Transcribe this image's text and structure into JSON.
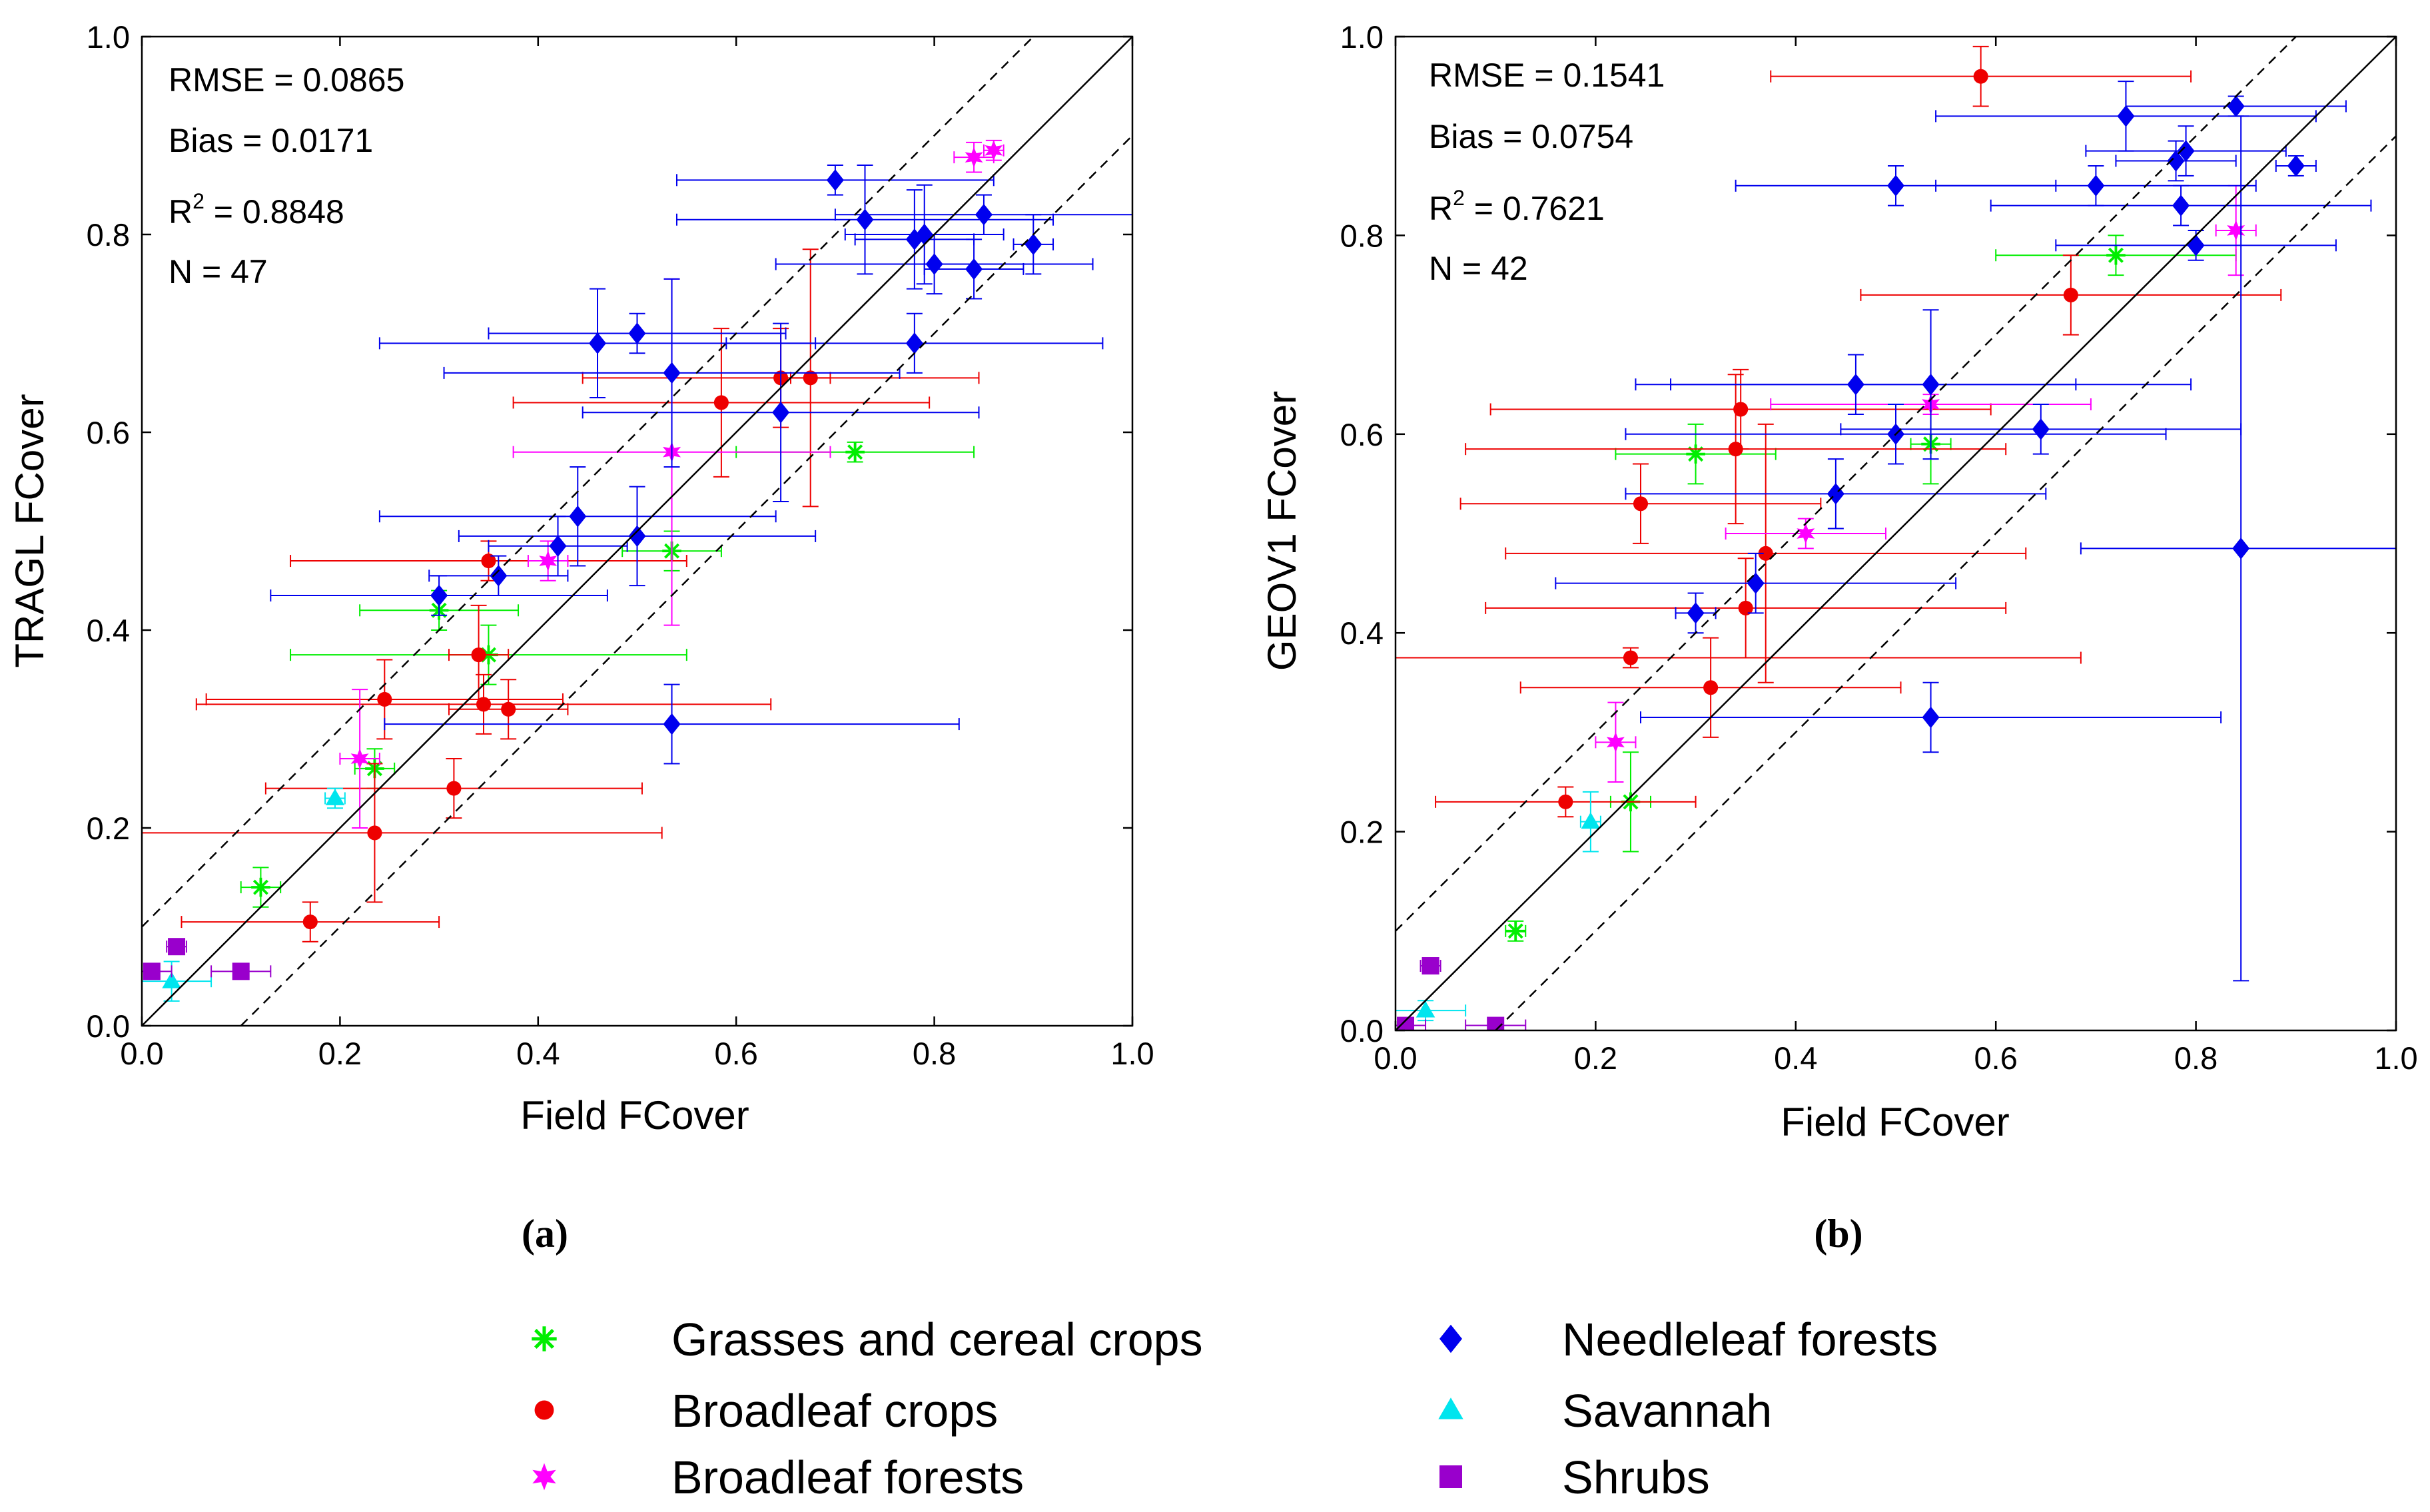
{
  "colors": {
    "grasses": "#00ee00",
    "broadleaf_crops": "#ee0000",
    "broadleaf_forests": "#ff00ff",
    "needleleaf": "#0000ee",
    "savannah": "#00e5ee",
    "shrubs": "#9900cc",
    "axis": "#000000"
  },
  "legend": {
    "items": [
      {
        "key": "grasses",
        "label": "Grasses and cereal crops",
        "marker": "star"
      },
      {
        "key": "broadleaf_crops",
        "label": "Broadleaf crops",
        "marker": "circle"
      },
      {
        "key": "broadleaf_forests",
        "label": "Broadleaf forests",
        "marker": "star6"
      },
      {
        "key": "needleleaf",
        "label": "Needleleaf forests",
        "marker": "diamond"
      },
      {
        "key": "savannah",
        "label": "Savannah",
        "marker": "triangle"
      },
      {
        "key": "shrubs",
        "label": "Shrubs",
        "marker": "square"
      }
    ]
  },
  "chart_data": [
    {
      "type": "scatter",
      "panel_label": "(a)",
      "xlabel": "Field  FCover",
      "ylabel": "TRAGL  FCover",
      "xlim": [
        0,
        1
      ],
      "ylim": [
        0,
        1
      ],
      "xticks": [
        "0.0",
        "0.2",
        "0.4",
        "0.6",
        "0.8",
        "1.0"
      ],
      "yticks": [
        "0.0",
        "0.2",
        "0.4",
        "0.6",
        "0.8",
        "1.0"
      ],
      "lines": {
        "identity": true,
        "band": 0.1
      },
      "stats": {
        "rmse": "RMSE = 0.0865",
        "bias": "Bias = 0.0171",
        "r2_prefix": "R",
        "r2_sup": "2",
        "r2_value": " = 0.8848",
        "n": "N = 47"
      },
      "series": [
        {
          "name": "Grasses and cereal crops",
          "key": "grasses",
          "marker": "star",
          "points": [
            [
              0.12,
              0.14,
              0.02,
              0.02
            ],
            [
              0.235,
              0.26,
              0.02,
              0.02
            ],
            [
              0.3,
              0.42,
              0.08,
              0.02
            ],
            [
              0.35,
              0.375,
              0.2,
              0.03
            ],
            [
              0.535,
              0.48,
              0.05,
              0.02
            ],
            [
              0.72,
              0.58,
              0.12,
              0.01
            ]
          ]
        },
        {
          "name": "Broadleaf crops",
          "key": "broadleaf_crops",
          "marker": "circle",
          "points": [
            [
              0.17,
              0.105,
              0.13,
              0.02
            ],
            [
              0.235,
              0.195,
              0.29,
              0.07
            ],
            [
              0.245,
              0.33,
              0.18,
              0.04
            ],
            [
              0.315,
              0.24,
              0.19,
              0.03
            ],
            [
              0.34,
              0.375,
              0.03,
              0.05
            ],
            [
              0.345,
              0.325,
              0.29,
              0.03
            ],
            [
              0.35,
              0.47,
              0.2,
              0.02
            ],
            [
              0.37,
              0.32,
              0.06,
              0.03
            ],
            [
              0.585,
              0.63,
              0.21,
              0.075
            ],
            [
              0.645,
              0.655,
              0.2,
              0.05
            ],
            [
              0.675,
              0.655,
              0.02,
              0.13
            ]
          ]
        },
        {
          "name": "Broadleaf forests",
          "key": "broadleaf_forests",
          "marker": "star6",
          "points": [
            [
              0.22,
              0.27,
              0.02,
              0.07
            ],
            [
              0.41,
              0.47,
              0.02,
              0.02
            ],
            [
              0.535,
              0.58,
              0.16,
              0.175
            ],
            [
              0.84,
              0.878,
              0.02,
              0.015
            ],
            [
              0.86,
              0.885,
              0.01,
              0.01
            ]
          ]
        },
        {
          "name": "Needleleaf forests",
          "key": "needleleaf",
          "marker": "diamond",
          "points": [
            [
              0.3,
              0.435,
              0.17,
              0.02
            ],
            [
              0.36,
              0.455,
              0.07,
              0.02
            ],
            [
              0.42,
              0.485,
              0.07,
              0.03
            ],
            [
              0.44,
              0.515,
              0.2,
              0.05
            ],
            [
              0.5,
              0.495,
              0.18,
              0.05
            ],
            [
              0.46,
              0.69,
              0.22,
              0.055
            ],
            [
              0.5,
              0.7,
              0.15,
              0.02
            ],
            [
              0.535,
              0.66,
              0.23,
              0.095
            ],
            [
              0.535,
              0.305,
              0.29,
              0.04
            ],
            [
              0.645,
              0.62,
              0.2,
              0.09
            ],
            [
              0.7,
              0.855,
              0.16,
              0.015
            ],
            [
              0.73,
              0.815,
              0.19,
              0.055
            ],
            [
              0.78,
              0.69,
              0.19,
              0.03
            ],
            [
              0.78,
              0.795,
              0.06,
              0.05
            ],
            [
              0.79,
              0.8,
              0.08,
              0.05
            ],
            [
              0.8,
              0.77,
              0.16,
              0.03
            ],
            [
              0.84,
              0.765,
              0.05,
              0.03
            ],
            [
              0.85,
              0.82,
              0.15,
              0.02
            ],
            [
              0.9,
              0.79,
              0.02,
              0.03
            ]
          ]
        },
        {
          "name": "Savannah",
          "key": "savannah",
          "marker": "triangle",
          "points": [
            [
              0.03,
              0.045,
              0.04,
              0.02
            ],
            [
              0.195,
              0.23,
              0.01,
              0.01
            ]
          ]
        },
        {
          "name": "Shrubs",
          "key": "shrubs",
          "marker": "square",
          "points": [
            [
              0.01,
              0.055,
              0.02,
              0.005
            ],
            [
              0.035,
              0.08,
              0.01,
              0.005
            ],
            [
              0.1,
              0.055,
              0.03,
              0.005
            ]
          ]
        }
      ]
    },
    {
      "type": "scatter",
      "panel_label": "(b)",
      "xlabel": "Field  FCover",
      "ylabel": "GEOV1  FCover",
      "xlim": [
        0,
        1
      ],
      "ylim": [
        0,
        1
      ],
      "xticks": [
        "0.0",
        "0.2",
        "0.4",
        "0.6",
        "0.8",
        "1.0"
      ],
      "yticks": [
        "0.0",
        "0.2",
        "0.4",
        "0.6",
        "0.8",
        "1.0"
      ],
      "lines": {
        "identity": true,
        "band": 0.1
      },
      "stats": {
        "rmse": "RMSE = 0.1541",
        "bias": "Bias = 0.0754",
        "r2_prefix": "R",
        "r2_sup": "2",
        "r2_value": " = 0.7621",
        "n": "N = 42"
      },
      "series": [
        {
          "name": "Grasses and cereal crops",
          "key": "grasses",
          "marker": "star",
          "points": [
            [
              0.12,
              0.1,
              0.01,
              0.01
            ],
            [
              0.235,
              0.23,
              0.02,
              0.05
            ],
            [
              0.3,
              0.58,
              0.08,
              0.03
            ],
            [
              0.535,
              0.59,
              0.02,
              0.04
            ],
            [
              0.72,
              0.78,
              0.12,
              0.02
            ]
          ]
        },
        {
          "name": "Broadleaf crops",
          "key": "broadleaf_crops",
          "marker": "circle",
          "points": [
            [
              0.17,
              0.23,
              0.13,
              0.015
            ],
            [
              0.235,
              0.375,
              0.45,
              0.01
            ],
            [
              0.245,
              0.53,
              0.18,
              0.04
            ],
            [
              0.315,
              0.345,
              0.19,
              0.05
            ],
            [
              0.34,
              0.585,
              0.27,
              0.075
            ],
            [
              0.345,
              0.625,
              0.25,
              0.04
            ],
            [
              0.35,
              0.425,
              0.26,
              0.05
            ],
            [
              0.37,
              0.48,
              0.26,
              0.13
            ],
            [
              0.585,
              0.96,
              0.21,
              0.03
            ],
            [
              0.675,
              0.74,
              0.21,
              0.04
            ]
          ]
        },
        {
          "name": "Broadleaf forests",
          "key": "broadleaf_forests",
          "marker": "star6",
          "points": [
            [
              0.22,
              0.29,
              0.02,
              0.04
            ],
            [
              0.41,
              0.5,
              0.08,
              0.015
            ],
            [
              0.535,
              0.63,
              0.16,
              0.01
            ],
            [
              0.84,
              0.805,
              0.02,
              0.045
            ]
          ]
        },
        {
          "name": "Needleleaf forests",
          "key": "needleleaf",
          "marker": "diamond",
          "points": [
            [
              0.3,
              0.42,
              0.02,
              0.02
            ],
            [
              0.36,
              0.45,
              0.2,
              0.03
            ],
            [
              0.44,
              0.54,
              0.21,
              0.035
            ],
            [
              0.46,
              0.65,
              0.22,
              0.03
            ],
            [
              0.5,
              0.6,
              0.27,
              0.03
            ],
            [
              0.5,
              0.85,
              0.16,
              0.02
            ],
            [
              0.535,
              0.65,
              0.26,
              0.075
            ],
            [
              0.535,
              0.315,
              0.29,
              0.035
            ],
            [
              0.645,
              0.605,
              0.2,
              0.025
            ],
            [
              0.7,
              0.85,
              0.16,
              0.02
            ],
            [
              0.73,
              0.92,
              0.19,
              0.035
            ],
            [
              0.78,
              0.875,
              0.06,
              0.02
            ],
            [
              0.79,
              0.885,
              0.1,
              0.025
            ],
            [
              0.785,
              0.83,
              0.19,
              0.02
            ],
            [
              0.8,
              0.79,
              0.14,
              0.015
            ],
            [
              0.84,
              0.93,
              0.11,
              0.01
            ],
            [
              0.9,
              0.87,
              0.02,
              0.01
            ],
            [
              0.845,
              0.485,
              0.16,
              0.435
            ]
          ]
        },
        {
          "name": "Savannah",
          "key": "savannah",
          "marker": "triangle",
          "points": [
            [
              0.03,
              0.02,
              0.04,
              0.01
            ],
            [
              0.195,
              0.21,
              0.01,
              0.03
            ]
          ]
        },
        {
          "name": "Shrubs",
          "key": "shrubs",
          "marker": "square",
          "points": [
            [
              0.01,
              0.005,
              0.02,
              0.005
            ],
            [
              0.035,
              0.065,
              0.01,
              0.005
            ],
            [
              0.1,
              0.005,
              0.03,
              0.005
            ]
          ]
        }
      ]
    }
  ]
}
